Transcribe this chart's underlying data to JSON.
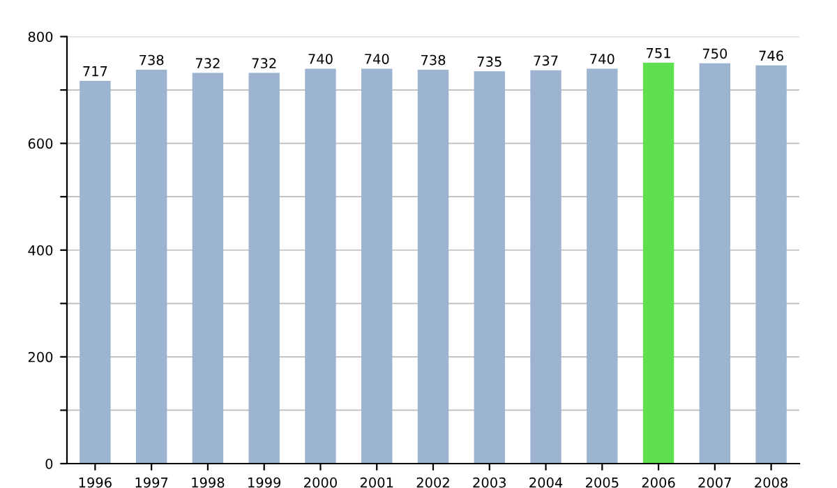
{
  "chart_data": {
    "type": "bar",
    "categories": [
      "1996",
      "1997",
      "1998",
      "1999",
      "2000",
      "2001",
      "2002",
      "2003",
      "2004",
      "2005",
      "2006",
      "2007",
      "2008"
    ],
    "values": [
      717,
      738,
      732,
      732,
      740,
      740,
      738,
      735,
      737,
      740,
      751,
      750,
      746
    ],
    "colors": [
      "#9cb4cf",
      "#9cb4cf",
      "#9cb4cf",
      "#9cb4cf",
      "#9cb4cf",
      "#9cb4cf",
      "#9cb4cf",
      "#9cb4cf",
      "#9cb4cf",
      "#9cb4cf",
      "#5fe04f",
      "#9cb4cf",
      "#9cb4cf"
    ],
    "data_labels": true,
    "ylim": [
      0,
      800
    ],
    "yticks": [
      0,
      {
        "value": 100,
        "label": null
      },
      200,
      {
        "value": 300,
        "label": null
      },
      400,
      {
        "value": 500,
        "label": null
      },
      600,
      {
        "value": 700,
        "label": null
      },
      800
    ],
    "grid": "y"
  }
}
